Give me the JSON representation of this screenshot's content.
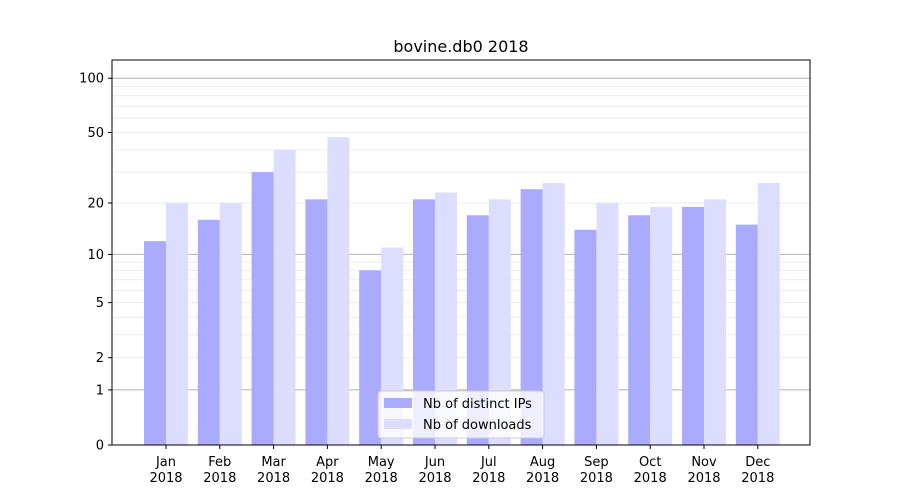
{
  "chart_data": {
    "type": "bar",
    "title": "bovine.db0 2018",
    "xlabel": "",
    "ylabel": "",
    "yscale": "log(1+y)",
    "ylim": [
      0,
      126
    ],
    "yticks": [
      0,
      1,
      2,
      5,
      10,
      20,
      50,
      100
    ],
    "grid": true,
    "legend_placement": "bottom-center",
    "categories": [
      "Jan\n2018",
      "Feb\n2018",
      "Mar\n2018",
      "Apr\n2018",
      "May\n2018",
      "Jun\n2018",
      "Jul\n2018",
      "Aug\n2018",
      "Sep\n2018",
      "Oct\n2018",
      "Nov\n2018",
      "Dec\n2018"
    ],
    "series": [
      {
        "name": "Nb of distinct IPs",
        "color": "#aaaaff",
        "values": [
          12,
          16,
          30,
          21,
          8,
          21,
          17,
          24,
          14,
          17,
          19,
          15
        ]
      },
      {
        "name": "Nb of downloads",
        "color": "#ddddff",
        "values": [
          20,
          20,
          40,
          47,
          11,
          23,
          21,
          26,
          20,
          19,
          21,
          26
        ]
      }
    ]
  }
}
